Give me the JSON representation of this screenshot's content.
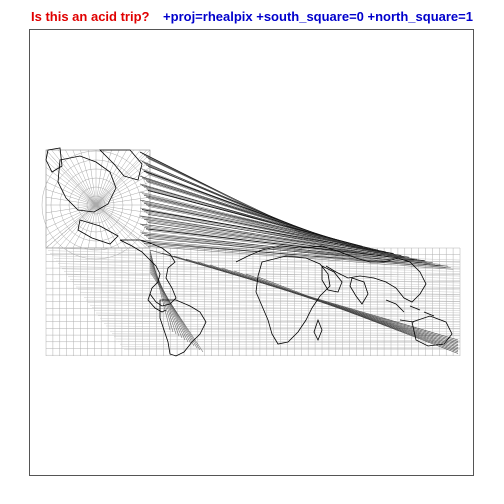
{
  "title": {
    "left": "Is this an acid trip?",
    "right": "+proj=rhealpix +south_square=0 +north_square=1",
    "left_color": "#e00000",
    "right_color": "#0000cc"
  },
  "map": {
    "graticule_color": "#b0b0b0",
    "coast_color": "#000000",
    "streak_color": "#333333"
  }
}
